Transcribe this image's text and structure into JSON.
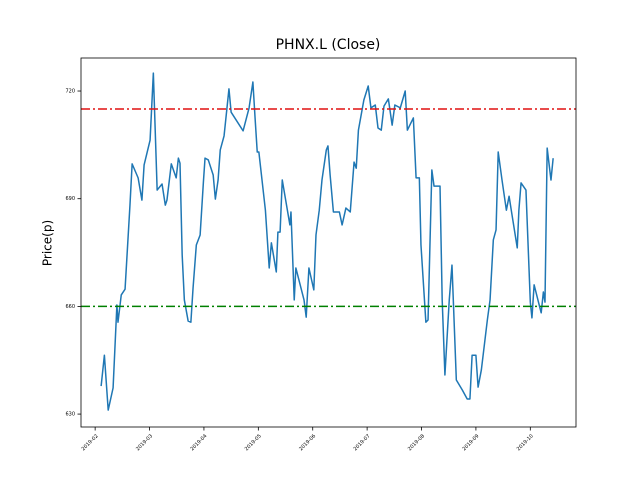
{
  "chart_data": {
    "type": "line",
    "title": "PHNX.L (Close)",
    "y_label": "Price(p)",
    "x": [
      2.11,
      2.17,
      2.24,
      2.33,
      2.4,
      2.42,
      2.48,
      2.55,
      2.64,
      2.68,
      2.79,
      2.86,
      2.9,
      3.01,
      3.07,
      3.14,
      3.23,
      3.29,
      3.32,
      3.4,
      3.49,
      3.53,
      3.56,
      3.6,
      3.64,
      3.71,
      3.76,
      3.8,
      3.86,
      3.93,
      3.99,
      4.02,
      4.08,
      4.17,
      4.21,
      4.26,
      4.3,
      4.37,
      4.46,
      4.5,
      4.72,
      4.83,
      4.9,
      4.94,
      4.98,
      5.01,
      5.13,
      5.2,
      5.24,
      5.33,
      5.36,
      5.4,
      5.44,
      5.58,
      5.6,
      5.66,
      5.69,
      5.84,
      5.88,
      5.93,
      6.02,
      6.06,
      6.12,
      6.17,
      6.25,
      6.28,
      6.32,
      6.38,
      6.49,
      6.54,
      6.61,
      6.69,
      6.76,
      6.8,
      6.84,
      6.94,
      7.02,
      7.07,
      7.15,
      7.2,
      7.26,
      7.31,
      7.39,
      7.46,
      7.51,
      7.61,
      7.7,
      7.74,
      7.85,
      7.9,
      7.96,
      7.99,
      8.08,
      8.12,
      8.19,
      8.23,
      8.34,
      8.38,
      8.43,
      8.51,
      8.56,
      8.64,
      8.75,
      8.84,
      8.89,
      8.93,
      9.0,
      9.04,
      9.1,
      9.21,
      9.26,
      9.32,
      9.37,
      9.41,
      9.48,
      9.56,
      9.61,
      9.65,
      9.76,
      9.79,
      9.83,
      9.92,
      10.0,
      10.03,
      10.07,
      10.14,
      10.2,
      10.24,
      10.27,
      10.31,
      10.38,
      10.42
    ],
    "series": [
      {
        "color": "#1f77b4",
        "values": [
          637.8,
          646.4,
          631.1,
          637.3,
          660.4,
          655.6,
          663.2,
          664.8,
          688.2,
          699.7,
          695.8,
          689.6,
          699.4,
          706.3,
          725.0,
          692.4,
          694.1,
          688.2,
          689.6,
          699.7,
          695.8,
          701.3,
          699.9,
          674.3,
          661.8,
          655.9,
          655.6,
          665.1,
          677.1,
          679.9,
          694.6,
          701.3,
          700.8,
          696.6,
          689.9,
          695.2,
          703.6,
          707.5,
          720.6,
          714.1,
          708.9,
          715.3,
          722.5,
          712.5,
          703.0,
          703.0,
          686.8,
          670.7,
          677.7,
          669.6,
          680.7,
          680.7,
          695.2,
          682.7,
          686.3,
          661.8,
          670.7,
          661.8,
          657.0,
          670.7,
          664.6,
          679.9,
          686.8,
          695.2,
          703.6,
          704.7,
          696.6,
          686.3,
          686.3,
          682.7,
          687.4,
          686.3,
          700.2,
          698.5,
          709.1,
          717.5,
          721.4,
          715.3,
          716.1,
          709.7,
          709.1,
          715.8,
          717.8,
          710.5,
          716.1,
          715.3,
          720.0,
          709.1,
          712.5,
          695.8,
          695.8,
          677.1,
          655.6,
          656.2,
          698.0,
          693.5,
          693.5,
          661.8,
          640.9,
          661.8,
          671.5,
          639.5,
          636.7,
          634.2,
          634.2,
          646.4,
          646.4,
          637.5,
          642.3,
          656.2,
          661.8,
          678.5,
          681.3,
          703.0,
          695.2,
          686.8,
          690.7,
          686.8,
          676.3,
          686.8,
          694.4,
          692.4,
          661.2,
          656.8,
          666.0,
          661.8,
          658.2,
          664.0,
          661.2,
          704.1,
          695.2,
          701.3
        ]
      }
    ],
    "hlines": [
      {
        "value": 715,
        "color": "#e01010"
      },
      {
        "value": 660,
        "color": "#008000"
      }
    ],
    "xlim": [
      1.74,
      10.84
    ],
    "xticks": [
      {
        "value": 2,
        "label": "2019-02"
      },
      {
        "value": 3,
        "label": "2019-03"
      },
      {
        "value": 4,
        "label": "2019-04"
      },
      {
        "value": 5,
        "label": "2019-05"
      },
      {
        "value": 6,
        "label": "2019-06"
      },
      {
        "value": 7,
        "label": "2019-07"
      },
      {
        "value": 8,
        "label": "2019-08"
      },
      {
        "value": 9,
        "label": "2019-09"
      },
      {
        "value": 10,
        "label": "2019-10"
      }
    ],
    "ylim": [
      626.4,
      729.2
    ],
    "yticks": [
      630,
      660,
      690,
      720
    ]
  }
}
